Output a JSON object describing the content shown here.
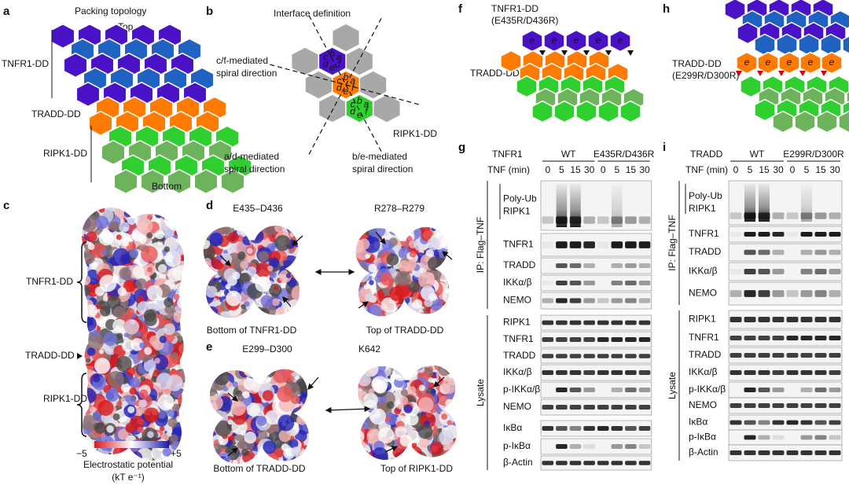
{
  "a": {
    "label": "a",
    "title": "Packing topology",
    "top": "Top",
    "bottom": "Bottom",
    "tnfr1": "TNFR1-DD",
    "tradd": "TRADD-DD",
    "ripk1": "RIPK1-DD"
  },
  "b": {
    "label": "b",
    "title": "Interface definition",
    "cf": [
      "c/f-mediated",
      "spiral direction"
    ],
    "ad": [
      "a/d-mediated",
      "spiral direction"
    ],
    "be": [
      "b/e-mediated",
      "spiral direction"
    ],
    "ripk1": "RIPK1-DD",
    "hexes": [
      {
        "letters": [
          "b",
          "a",
          "f",
          "e",
          "d",
          "c"
        ]
      },
      {
        "letters": [
          "b",
          "a",
          "f",
          "e",
          "d",
          "c"
        ]
      },
      {
        "letters": [
          "b",
          "a",
          "f",
          "e",
          "d",
          "c"
        ]
      }
    ]
  },
  "c": {
    "label": "c",
    "tnfr1": "TNFR1-DD",
    "tradd": "TRADD-DD",
    "ripk1": "RIPK1-DD",
    "min": "−5",
    "max": "+5",
    "legend": "Electrostatic potential",
    "unit": "(kT e⁻¹)"
  },
  "d": {
    "label": "d",
    "left_site": "E435–D436",
    "right_site": "R278–R279",
    "left_caption": "Bottom of TNFR1-DD",
    "right_caption": "Top of TRADD-DD"
  },
  "e": {
    "label": "e",
    "left_site": "E299–D300",
    "right_site": "K642",
    "left_caption": "Bottom of TRADD-DD",
    "right_caption": "Top of RIPK1-DD"
  },
  "f": {
    "label": "f",
    "mutant": [
      "TNFR1-DD",
      "(E435R/D436R)"
    ],
    "partner": "TRADD-DD",
    "hex_letters": [
      "e",
      "e",
      "e",
      "e",
      "e"
    ]
  },
  "h": {
    "label": "h",
    "mutant": [
      "TRADD-DD",
      "(E299R/D300R)"
    ],
    "hex_letters": [
      "e",
      "e",
      "e",
      "e",
      "e"
    ]
  },
  "g": {
    "label": "g",
    "construct": "TNFR1",
    "groups": [
      "WT",
      "E435R/D436R"
    ],
    "time_label": "TNF (min)",
    "times": [
      0,
      5,
      15,
      30,
      0,
      5,
      15,
      30
    ],
    "ip_label": "IP: Flag–TNF",
    "lysate_label": "Lysate",
    "ip_rows": [
      [
        "Poly-Ub",
        "RIPK1"
      ],
      [
        "TNFR1"
      ],
      [
        "TRADD"
      ],
      [
        "IKKα/β"
      ],
      [
        "NEMO"
      ]
    ],
    "lysate_rows": [
      "RIPK1",
      "TNFR1",
      "TRADD",
      "IKKα/β",
      "p-IKKα/β",
      "NEMO",
      "IκBα",
      "p-IκBα",
      "β-Actin"
    ]
  },
  "i": {
    "label": "i",
    "construct": "TRADD",
    "groups": [
      "WT",
      "E299R/D300R"
    ],
    "time_label": "TNF (min)",
    "times": [
      0,
      5,
      15,
      30,
      0,
      5,
      15,
      30
    ],
    "ip_label": "IP: Flag–TNF",
    "lysate_label": "Lysate",
    "ip_rows": [
      [
        "Poly-Ub",
        "RIPK1"
      ],
      [
        "TNFR1"
      ],
      [
        "TRADD"
      ],
      [
        "IKKα/β"
      ],
      [
        "NEMO"
      ]
    ],
    "lysate_rows": [
      "RIPK1",
      "TNFR1",
      "TRADD",
      "IKKα/β",
      "p-IKKα/β",
      "NEMO",
      "IκBα",
      "p-IκBα",
      "β-Actin"
    ]
  }
}
